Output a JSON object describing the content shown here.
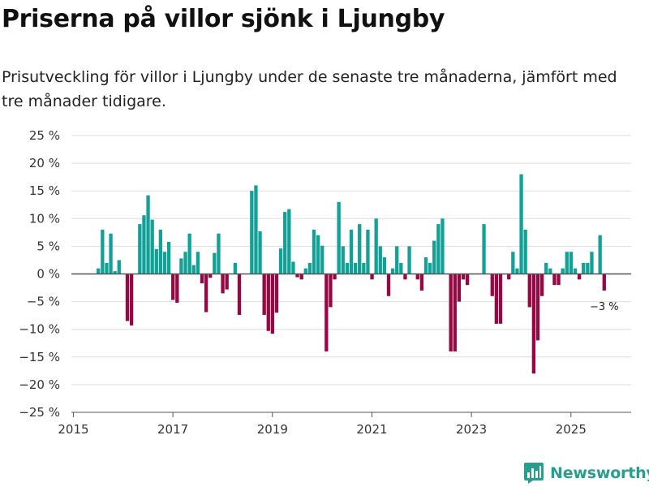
{
  "title": "Priserna på villor sjönk i Ljungby",
  "subtitle": "Prisutveckling för villor i Ljungby under de senaste tre månaderna, jämfört med tre månader tidigare.",
  "brand": {
    "name": "Newsworthy",
    "icon": "bar-chart-logo-icon",
    "color": "#2a9d8f"
  },
  "colors": {
    "positive": "#12a197",
    "negative": "#960843",
    "grid": "#dddddd",
    "axis": "#555555"
  },
  "chart_data": {
    "type": "bar",
    "title": "Priserna på villor sjönk i Ljungby",
    "xlabel": "",
    "ylabel": "",
    "ylim": [
      -25,
      25
    ],
    "yticks": [
      25,
      20,
      15,
      10,
      5,
      0,
      -5,
      -10,
      -15,
      -20,
      -25
    ],
    "ytick_labels": [
      "25 %",
      "20 %",
      "15 %",
      "10 %",
      "5 %",
      "0 %",
      "−5 %",
      "−10 %",
      "−15 %",
      "−20 %",
      "−25 %"
    ],
    "xlim": [
      2015.0,
      2026.25
    ],
    "xticks": [
      2015,
      2017,
      2019,
      2021,
      2023,
      2025
    ],
    "xtick_labels": [
      "2015",
      "2017",
      "2019",
      "2021",
      "2023",
      "2025"
    ],
    "period_unit": "month",
    "annotation": {
      "text": "−3 %",
      "target_period": "2025-09"
    },
    "series": [
      {
        "name": "Prisutveckling",
        "points": [
          {
            "period": "2015-07",
            "value": 1
          },
          {
            "period": "2015-08",
            "value": 8
          },
          {
            "period": "2015-09",
            "value": 2
          },
          {
            "period": "2015-10",
            "value": 7.3
          },
          {
            "period": "2015-11",
            "value": 0.5
          },
          {
            "period": "2015-12",
            "value": 2.5
          },
          {
            "period": "2016-02",
            "value": -8.5
          },
          {
            "period": "2016-03",
            "value": -9.3
          },
          {
            "period": "2016-05",
            "value": 9
          },
          {
            "period": "2016-06",
            "value": 10.6
          },
          {
            "period": "2016-07",
            "value": 14.2
          },
          {
            "period": "2016-08",
            "value": 9.8
          },
          {
            "period": "2016-09",
            "value": 4.5
          },
          {
            "period": "2016-10",
            "value": 8
          },
          {
            "period": "2016-11",
            "value": 4
          },
          {
            "period": "2016-12",
            "value": 5.8
          },
          {
            "period": "2017-01",
            "value": -4.7
          },
          {
            "period": "2017-02",
            "value": -5.2
          },
          {
            "period": "2017-03",
            "value": 2.8
          },
          {
            "period": "2017-04",
            "value": 4
          },
          {
            "period": "2017-05",
            "value": 7.3
          },
          {
            "period": "2017-06",
            "value": 1.6
          },
          {
            "period": "2017-07",
            "value": 4
          },
          {
            "period": "2017-08",
            "value": -1.7
          },
          {
            "period": "2017-09",
            "value": -6.9
          },
          {
            "period": "2017-10",
            "value": -0.7
          },
          {
            "period": "2017-11",
            "value": 3.8
          },
          {
            "period": "2017-12",
            "value": 7.3
          },
          {
            "period": "2018-01",
            "value": -3.5
          },
          {
            "period": "2018-02",
            "value": -2.8
          },
          {
            "period": "2018-04",
            "value": 2
          },
          {
            "period": "2018-05",
            "value": -7.4
          },
          {
            "period": "2018-08",
            "value": 15
          },
          {
            "period": "2018-09",
            "value": 16
          },
          {
            "period": "2018-10",
            "value": 7.7
          },
          {
            "period": "2018-11",
            "value": -7.4
          },
          {
            "period": "2018-12",
            "value": -10.3
          },
          {
            "period": "2019-01",
            "value": -10.8
          },
          {
            "period": "2019-02",
            "value": -7
          },
          {
            "period": "2019-03",
            "value": 4.6
          },
          {
            "period": "2019-04",
            "value": 11.2
          },
          {
            "period": "2019-05",
            "value": 11.7
          },
          {
            "period": "2019-06",
            "value": 2.2
          },
          {
            "period": "2019-07",
            "value": -0.6
          },
          {
            "period": "2019-08",
            "value": -1
          },
          {
            "period": "2019-09",
            "value": 1
          },
          {
            "period": "2019-10",
            "value": 2
          },
          {
            "period": "2019-11",
            "value": 8
          },
          {
            "period": "2019-12",
            "value": 7
          },
          {
            "period": "2020-01",
            "value": 5.1
          },
          {
            "period": "2020-02",
            "value": -14
          },
          {
            "period": "2020-03",
            "value": -6
          },
          {
            "period": "2020-04",
            "value": -1
          },
          {
            "period": "2020-05",
            "value": 13
          },
          {
            "period": "2020-06",
            "value": 5
          },
          {
            "period": "2020-07",
            "value": 2
          },
          {
            "period": "2020-08",
            "value": 8
          },
          {
            "period": "2020-09",
            "value": 2
          },
          {
            "period": "2020-10",
            "value": 9
          },
          {
            "period": "2020-11",
            "value": 2
          },
          {
            "period": "2020-12",
            "value": 8
          },
          {
            "period": "2021-01",
            "value": -1
          },
          {
            "period": "2021-02",
            "value": 10
          },
          {
            "period": "2021-03",
            "value": 5
          },
          {
            "period": "2021-04",
            "value": 3
          },
          {
            "period": "2021-05",
            "value": -4
          },
          {
            "period": "2021-06",
            "value": 1
          },
          {
            "period": "2021-07",
            "value": 5
          },
          {
            "period": "2021-08",
            "value": 2
          },
          {
            "period": "2021-09",
            "value": -1
          },
          {
            "period": "2021-10",
            "value": 5
          },
          {
            "period": "2021-12",
            "value": -1
          },
          {
            "period": "2022-01",
            "value": -3
          },
          {
            "period": "2022-02",
            "value": 3
          },
          {
            "period": "2022-03",
            "value": 2
          },
          {
            "period": "2022-04",
            "value": 6
          },
          {
            "period": "2022-05",
            "value": 9
          },
          {
            "period": "2022-06",
            "value": 10
          },
          {
            "period": "2022-08",
            "value": -14
          },
          {
            "period": "2022-09",
            "value": -14
          },
          {
            "period": "2022-10",
            "value": -5
          },
          {
            "period": "2022-11",
            "value": -1
          },
          {
            "period": "2022-12",
            "value": -2
          },
          {
            "period": "2023-04",
            "value": 9
          },
          {
            "period": "2023-06",
            "value": -4
          },
          {
            "period": "2023-07",
            "value": -9
          },
          {
            "period": "2023-08",
            "value": -9
          },
          {
            "period": "2023-10",
            "value": -1
          },
          {
            "period": "2023-11",
            "value": 4
          },
          {
            "period": "2023-12",
            "value": 1
          },
          {
            "period": "2024-01",
            "value": 18
          },
          {
            "period": "2024-02",
            "value": 8
          },
          {
            "period": "2024-03",
            "value": -6
          },
          {
            "period": "2024-04",
            "value": -18
          },
          {
            "period": "2024-05",
            "value": -12
          },
          {
            "period": "2024-06",
            "value": -4
          },
          {
            "period": "2024-07",
            "value": 2
          },
          {
            "period": "2024-08",
            "value": 1
          },
          {
            "period": "2024-09",
            "value": -2
          },
          {
            "period": "2024-10",
            "value": -2
          },
          {
            "period": "2024-11",
            "value": 1
          },
          {
            "period": "2024-12",
            "value": 4
          },
          {
            "period": "2025-01",
            "value": 4
          },
          {
            "period": "2025-02",
            "value": 1
          },
          {
            "period": "2025-03",
            "value": -1
          },
          {
            "period": "2025-04",
            "value": 2
          },
          {
            "period": "2025-05",
            "value": 2
          },
          {
            "period": "2025-06",
            "value": 4
          },
          {
            "period": "2025-08",
            "value": 7
          },
          {
            "period": "2025-09",
            "value": -3
          }
        ]
      }
    ]
  }
}
